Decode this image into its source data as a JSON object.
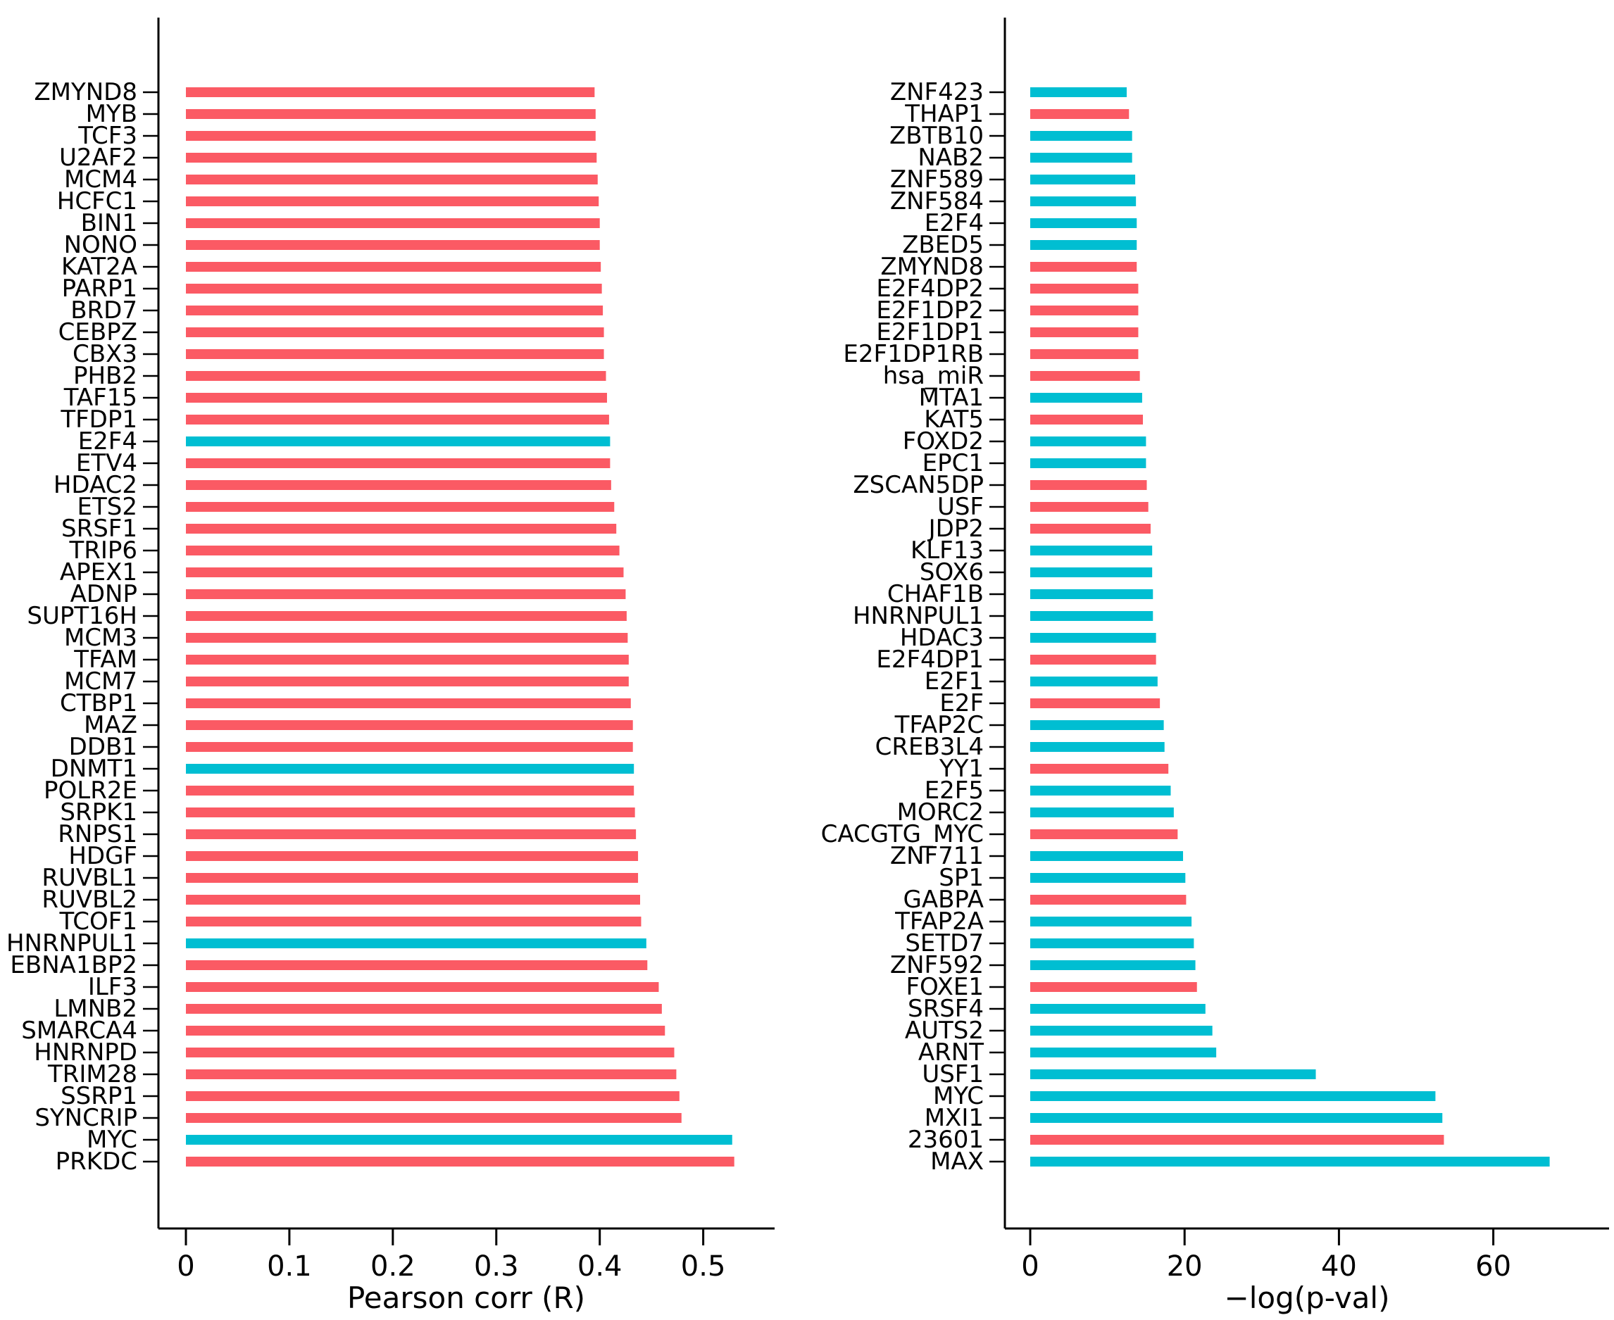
{
  "figure": {
    "background": "#ffffff",
    "description": "Two horizontal bar charts: gene Pearson correlation (left) and -log(p-val) enrichment (right)"
  },
  "palette": {
    "red": "#FB5A64",
    "cyan": "#00BED2",
    "axis": "#000000"
  },
  "chart_data": [
    {
      "type": "bar",
      "orientation": "horizontal",
      "title": "",
      "xlabel": "Pearson corr (R)",
      "ylabel": "",
      "grid": false,
      "legend": null,
      "xticks": [
        "0",
        "0.1",
        "0.2",
        "0.3",
        "0.4",
        "0.5"
      ],
      "xtick_values": [
        0,
        0.1,
        0.2,
        0.3,
        0.4,
        0.5
      ],
      "xlim": [
        0,
        0.569
      ],
      "categories": [
        "ZMYND8",
        "MYB",
        "TCF3",
        "U2AF2",
        "MCM4",
        "HCFC1",
        "BIN1",
        "NONO",
        "KAT2A",
        "PARP1",
        "BRD7",
        "CEBPZ",
        "CBX3",
        "PHB2",
        "TAF15",
        "TFDP1",
        "E2F4",
        "ETV4",
        "HDAC2",
        "ETS2",
        "SRSF1",
        "TRIP6",
        "APEX1",
        "ADNP",
        "SUPT16H",
        "MCM3",
        "TFAM",
        "MCM7",
        "CTBP1",
        "MAZ",
        "DDB1",
        "DNMT1",
        "POLR2E",
        "SRPK1",
        "RNPS1",
        "HDGF",
        "RUVBL1",
        "RUVBL2",
        "TCOF1",
        "HNRNPUL1",
        "EBNA1BP2",
        "ILF3",
        "LMNB2",
        "SMARCA4",
        "HNRNPD",
        "TRIM28",
        "SSRP1",
        "SYNCRIP",
        "MYC",
        "PRKDC"
      ],
      "values": [
        0.395,
        0.396,
        0.396,
        0.397,
        0.398,
        0.399,
        0.4,
        0.4,
        0.401,
        0.402,
        0.403,
        0.404,
        0.404,
        0.406,
        0.407,
        0.409,
        0.41,
        0.41,
        0.411,
        0.414,
        0.416,
        0.419,
        0.423,
        0.425,
        0.426,
        0.427,
        0.428,
        0.428,
        0.43,
        0.432,
        0.432,
        0.433,
        0.433,
        0.434,
        0.435,
        0.437,
        0.437,
        0.439,
        0.44,
        0.445,
        0.446,
        0.457,
        0.46,
        0.463,
        0.472,
        0.474,
        0.477,
        0.479,
        0.528,
        0.53
      ],
      "bar_colors": [
        "red",
        "red",
        "red",
        "red",
        "red",
        "red",
        "red",
        "red",
        "red",
        "red",
        "red",
        "red",
        "red",
        "red",
        "red",
        "red",
        "cyan",
        "red",
        "red",
        "red",
        "red",
        "red",
        "red",
        "red",
        "red",
        "red",
        "red",
        "red",
        "red",
        "red",
        "red",
        "cyan",
        "red",
        "red",
        "red",
        "red",
        "red",
        "red",
        "red",
        "cyan",
        "red",
        "red",
        "red",
        "red",
        "red",
        "red",
        "red",
        "red",
        "cyan",
        "red"
      ]
    },
    {
      "type": "bar",
      "orientation": "horizontal",
      "title": "",
      "xlabel": "−log(p-val)",
      "ylabel": "",
      "grid": false,
      "legend": null,
      "xticks": [
        "0",
        "20",
        "40",
        "60"
      ],
      "xtick_values": [
        0,
        20,
        40,
        60
      ],
      "xlim": [
        0,
        75
      ],
      "categories": [
        "ZNF423",
        "THAP1",
        "ZBTB10",
        "NAB2",
        "ZNF589",
        "ZNF584",
        "E2F4",
        "ZBED5",
        "ZMYND8",
        "E2F4DP2",
        "E2F1DP2",
        "E2F1DP1",
        "E2F1DP1RB",
        "hsa_miR",
        "MTA1",
        "KAT5",
        "FOXD2",
        "EPC1",
        "ZSCAN5DP",
        "USF",
        "JDP2",
        "KLF13",
        "SOX6",
        "CHAF1B",
        "HNRNPUL1",
        "HDAC3",
        "E2F4DP1",
        "E2F1",
        "E2F",
        "TFAP2C",
        "CREB3L4",
        "YY1",
        "E2F5",
        "MORC2",
        "CACGTG_MYC",
        "ZNF711",
        "SP1",
        "GABPA",
        "TFAP2A",
        "SETD7",
        "ZNF592",
        "FOXE1",
        "SRSF4",
        "AUTS2",
        "ARNT",
        "USF1",
        "MYC",
        "MXI1",
        "23601",
        "MAX"
      ],
      "values": [
        12.5,
        12.8,
        13.2,
        13.2,
        13.6,
        13.7,
        13.8,
        13.8,
        13.8,
        14.0,
        14.0,
        14.0,
        14.0,
        14.2,
        14.5,
        14.6,
        15.0,
        15.0,
        15.1,
        15.3,
        15.6,
        15.8,
        15.8,
        15.9,
        15.9,
        16.3,
        16.3,
        16.5,
        16.8,
        17.3,
        17.4,
        17.9,
        18.2,
        18.6,
        19.1,
        19.8,
        20.1,
        20.2,
        20.9,
        21.2,
        21.4,
        21.6,
        22.7,
        23.6,
        24.1,
        37.0,
        52.5,
        53.4,
        53.6,
        67.3
      ],
      "bar_colors": [
        "cyan",
        "red",
        "cyan",
        "cyan",
        "cyan",
        "cyan",
        "cyan",
        "cyan",
        "red",
        "red",
        "red",
        "red",
        "red",
        "red",
        "cyan",
        "red",
        "cyan",
        "cyan",
        "red",
        "red",
        "red",
        "cyan",
        "cyan",
        "cyan",
        "cyan",
        "cyan",
        "red",
        "cyan",
        "red",
        "cyan",
        "cyan",
        "red",
        "cyan",
        "cyan",
        "red",
        "cyan",
        "cyan",
        "red",
        "cyan",
        "cyan",
        "cyan",
        "red",
        "cyan",
        "cyan",
        "cyan",
        "cyan",
        "cyan",
        "cyan",
        "red",
        "cyan"
      ]
    }
  ]
}
